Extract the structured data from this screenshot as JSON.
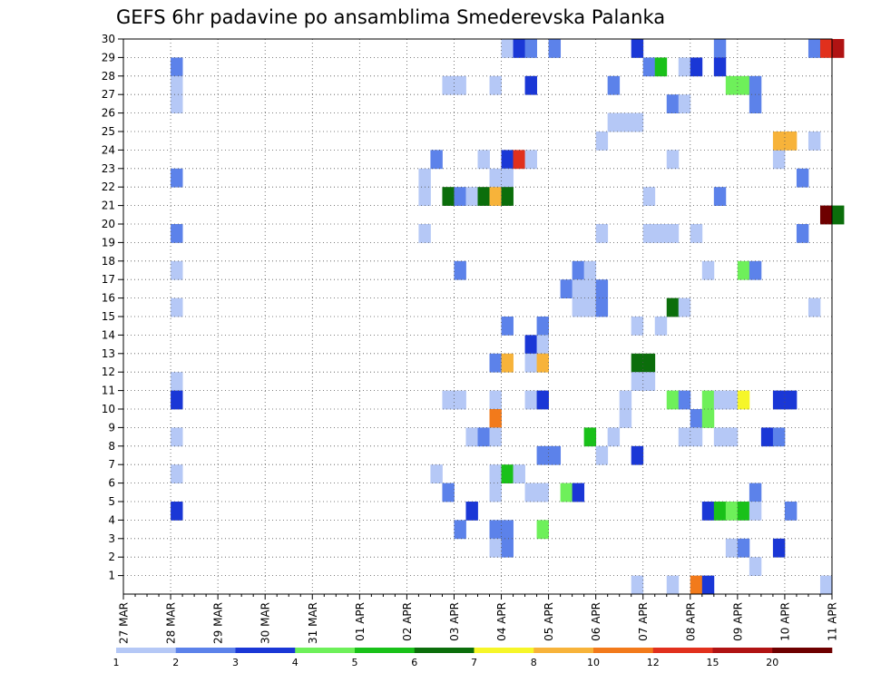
{
  "chart_data": {
    "type": "heatmap",
    "title": "GEFS 6hr padavine po ansamblima Smederevska Palanka",
    "x_labels": [
      "27 MAR",
      "28 MAR",
      "29 MAR",
      "30 MAR",
      "31 MAR",
      "01 APR",
      "02 APR",
      "03 APR",
      "04 APR",
      "05 APR",
      "06 APR",
      "07 APR",
      "08 APR",
      "09 APR",
      "10 APR",
      "11 APR"
    ],
    "y_labels": [
      "1",
      "2",
      "3",
      "4",
      "5",
      "6",
      "7",
      "8",
      "9",
      "10",
      "11",
      "12",
      "13",
      "14",
      "15",
      "16",
      "17",
      "18",
      "19",
      "20",
      "21",
      "22",
      "23",
      "24",
      "25",
      "26",
      "27",
      "28",
      "29",
      "30"
    ],
    "time_step_hours": 6,
    "y_range": [
      0,
      30
    ],
    "grid": true,
    "colorbar": {
      "labels": [
        "1",
        "2",
        "3",
        "4",
        "5",
        "6",
        "7",
        "8",
        "10",
        "12",
        "15",
        "20"
      ],
      "colors": [
        "#b5c8f6",
        "#5c82ea",
        "#1a37d6",
        "#6ef05a",
        "#19c119",
        "#0b6e0b",
        "#f6f629",
        "#f7b33a",
        "#f27a1b",
        "#e1301d",
        "#b01313",
        "#6e0000"
      ]
    },
    "cells": [
      [
        4,
        28,
        1
      ],
      [
        4,
        27,
        0
      ],
      [
        4,
        26,
        0
      ],
      [
        4,
        22,
        1
      ],
      [
        4,
        19,
        1
      ],
      [
        4,
        17,
        0
      ],
      [
        4,
        15,
        0
      ],
      [
        4,
        11,
        0
      ],
      [
        4,
        10,
        2
      ],
      [
        4,
        8,
        0
      ],
      [
        4,
        6,
        0
      ],
      [
        4,
        4,
        2
      ],
      [
        25,
        21,
        0
      ],
      [
        25,
        22,
        0
      ],
      [
        25,
        19,
        0
      ],
      [
        26,
        23,
        1
      ],
      [
        26,
        6,
        0
      ],
      [
        27,
        27,
        0
      ],
      [
        27,
        21,
        5
      ],
      [
        27,
        10,
        0
      ],
      [
        27,
        5,
        1
      ],
      [
        28,
        27,
        0
      ],
      [
        28,
        21,
        1
      ],
      [
        28,
        17,
        1
      ],
      [
        28,
        10,
        0
      ],
      [
        28,
        3,
        1
      ],
      [
        29,
        21,
        0
      ],
      [
        29,
        8,
        0
      ],
      [
        29,
        4,
        2
      ],
      [
        30,
        23,
        0
      ],
      [
        30,
        21,
        5
      ],
      [
        30,
        8,
        1
      ],
      [
        31,
        27,
        0
      ],
      [
        31,
        22,
        0
      ],
      [
        31,
        21,
        7
      ],
      [
        31,
        12,
        1
      ],
      [
        31,
        10,
        0
      ],
      [
        31,
        9,
        8
      ],
      [
        31,
        8,
        0
      ],
      [
        31,
        6,
        0
      ],
      [
        31,
        5,
        0
      ],
      [
        31,
        3,
        1
      ],
      [
        31,
        2,
        0
      ],
      [
        32,
        29,
        0
      ],
      [
        32,
        23,
        2
      ],
      [
        32,
        22,
        0
      ],
      [
        32,
        21,
        5
      ],
      [
        32,
        14,
        1
      ],
      [
        32,
        12,
        7
      ],
      [
        32,
        6,
        4
      ],
      [
        32,
        3,
        1
      ],
      [
        32,
        2,
        1
      ],
      [
        33,
        29,
        2
      ],
      [
        33,
        23,
        9
      ],
      [
        33,
        6,
        0
      ],
      [
        34,
        29,
        1
      ],
      [
        34,
        27,
        2
      ],
      [
        34,
        23,
        0
      ],
      [
        34,
        13,
        2
      ],
      [
        34,
        12,
        0
      ],
      [
        34,
        10,
        0
      ],
      [
        34,
        5,
        0
      ],
      [
        35,
        14,
        1
      ],
      [
        35,
        13,
        0
      ],
      [
        35,
        12,
        7
      ],
      [
        35,
        10,
        2
      ],
      [
        35,
        7,
        1
      ],
      [
        35,
        5,
        0
      ],
      [
        35,
        3,
        3
      ],
      [
        36,
        29,
        1
      ],
      [
        36,
        7,
        1
      ],
      [
        37,
        16,
        1
      ],
      [
        37,
        5,
        3
      ],
      [
        38,
        17,
        1
      ],
      [
        38,
        16,
        0
      ],
      [
        38,
        15,
        0
      ],
      [
        38,
        5,
        2
      ],
      [
        39,
        17,
        0
      ],
      [
        39,
        16,
        0
      ],
      [
        39,
        15,
        0
      ],
      [
        39,
        8,
        4
      ],
      [
        40,
        24,
        0
      ],
      [
        40,
        19,
        0
      ],
      [
        40,
        16,
        1
      ],
      [
        40,
        15,
        1
      ],
      [
        40,
        7,
        0
      ],
      [
        41,
        27,
        1
      ],
      [
        41,
        25,
        0
      ],
      [
        41,
        8,
        0
      ],
      [
        42,
        25,
        0
      ],
      [
        42,
        10,
        0
      ],
      [
        42,
        9,
        0
      ],
      [
        43,
        29,
        2
      ],
      [
        43,
        25,
        0
      ],
      [
        43,
        14,
        0
      ],
      [
        43,
        12,
        5
      ],
      [
        43,
        11,
        0
      ],
      [
        43,
        7,
        2
      ],
      [
        43,
        0,
        0
      ],
      [
        44,
        28,
        1
      ],
      [
        44,
        21,
        0
      ],
      [
        44,
        19,
        0
      ],
      [
        44,
        12,
        5
      ],
      [
        44,
        11,
        0
      ],
      [
        45,
        28,
        4
      ],
      [
        45,
        19,
        0
      ],
      [
        45,
        14,
        0
      ],
      [
        46,
        26,
        1
      ],
      [
        46,
        23,
        0
      ],
      [
        46,
        19,
        0
      ],
      [
        46,
        15,
        5
      ],
      [
        46,
        10,
        3
      ],
      [
        46,
        0,
        0
      ],
      [
        47,
        28,
        0
      ],
      [
        47,
        26,
        0
      ],
      [
        47,
        15,
        0
      ],
      [
        47,
        10,
        1
      ],
      [
        47,
        8,
        0
      ],
      [
        48,
        28,
        2
      ],
      [
        48,
        19,
        0
      ],
      [
        48,
        9,
        1
      ],
      [
        48,
        8,
        0
      ],
      [
        48,
        0,
        8
      ],
      [
        49,
        17,
        0
      ],
      [
        49,
        10,
        3
      ],
      [
        49,
        9,
        3
      ],
      [
        49,
        4,
        2
      ],
      [
        49,
        0,
        2
      ],
      [
        50,
        29,
        1
      ],
      [
        50,
        28,
        2
      ],
      [
        50,
        21,
        1
      ],
      [
        50,
        10,
        0
      ],
      [
        50,
        8,
        0
      ],
      [
        50,
        4,
        4
      ],
      [
        51,
        27,
        3
      ],
      [
        51,
        10,
        0
      ],
      [
        51,
        8,
        0
      ],
      [
        51,
        4,
        3
      ],
      [
        51,
        2,
        0
      ],
      [
        52,
        27,
        3
      ],
      [
        52,
        17,
        3
      ],
      [
        52,
        10,
        6
      ],
      [
        52,
        4,
        4
      ],
      [
        52,
        2,
        1
      ],
      [
        53,
        27,
        1
      ],
      [
        53,
        26,
        1
      ],
      [
        53,
        17,
        1
      ],
      [
        53,
        5,
        1
      ],
      [
        53,
        4,
        0
      ],
      [
        53,
        1,
        0
      ],
      [
        54,
        8,
        2
      ],
      [
        55,
        23,
        0
      ],
      [
        55,
        24,
        7
      ],
      [
        55,
        10,
        2
      ],
      [
        55,
        8,
        1
      ],
      [
        55,
        2,
        2
      ],
      [
        56,
        24,
        7
      ],
      [
        56,
        10,
        2
      ],
      [
        56,
        4,
        1
      ],
      [
        57,
        22,
        1
      ],
      [
        57,
        19,
        1
      ],
      [
        58,
        29,
        1
      ],
      [
        58,
        24,
        0
      ],
      [
        58,
        15,
        0
      ],
      [
        59,
        29,
        9
      ],
      [
        59,
        20,
        11
      ],
      [
        59,
        0,
        0
      ],
      [
        60,
        29,
        10
      ],
      [
        60,
        20,
        5
      ]
    ]
  }
}
